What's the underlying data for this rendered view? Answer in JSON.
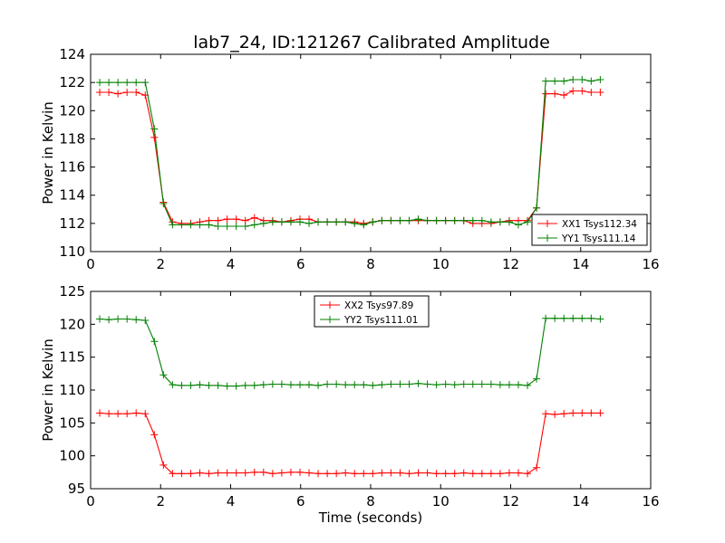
{
  "title": "lab7_24, ID:121267 Calibrated Amplitude",
  "chart_data": [
    {
      "type": "line",
      "ylabel": "Power in Kelvin",
      "xlabel": "",
      "xlim": [
        0,
        16
      ],
      "ylim": [
        110,
        124
      ],
      "xticks": [
        "0",
        "2",
        "4",
        "6",
        "8",
        "10",
        "12",
        "14",
        "16"
      ],
      "yticks": [
        "110",
        "112",
        "114",
        "116",
        "118",
        "120",
        "122",
        "124"
      ],
      "legend_position": "lower-right",
      "x": [
        0.26,
        0.52,
        0.78,
        1.04,
        1.3,
        1.56,
        1.82,
        2.08,
        2.34,
        2.6,
        2.86,
        3.12,
        3.38,
        3.64,
        3.9,
        4.16,
        4.42,
        4.68,
        4.94,
        5.2,
        5.46,
        5.72,
        5.98,
        6.24,
        6.5,
        6.76,
        7.02,
        7.28,
        7.54,
        7.8,
        8.06,
        8.32,
        8.58,
        8.84,
        9.1,
        9.36,
        9.62,
        9.88,
        10.14,
        10.4,
        10.66,
        10.92,
        11.18,
        11.44,
        11.7,
        11.96,
        12.22,
        12.48,
        12.74,
        13.0,
        13.26,
        13.52,
        13.78,
        14.04,
        14.3,
        14.56
      ],
      "series": [
        {
          "name": "XX1 Tsys112.34",
          "color": "#ff0000",
          "values": [
            121.3,
            121.3,
            121.2,
            121.3,
            121.3,
            121.1,
            118.1,
            113.5,
            112.1,
            112.0,
            112.0,
            112.1,
            112.2,
            112.2,
            112.3,
            112.3,
            112.2,
            112.4,
            112.2,
            112.2,
            112.1,
            112.2,
            112.3,
            112.3,
            112.1,
            112.1,
            112.1,
            112.1,
            112.1,
            112.0,
            112.1,
            112.2,
            112.2,
            112.2,
            112.2,
            112.2,
            112.2,
            112.2,
            112.2,
            112.2,
            112.2,
            112.0,
            112.0,
            112.0,
            112.1,
            112.2,
            112.2,
            112.2,
            113.1,
            121.2,
            121.2,
            121.1,
            121.4,
            121.4,
            121.3,
            121.3
          ]
        },
        {
          "name": "YY1 Tsys111.14",
          "color": "#008000",
          "values": [
            122.0,
            122.0,
            122.0,
            122.0,
            122.0,
            122.0,
            118.7,
            113.4,
            111.9,
            111.9,
            111.9,
            111.9,
            111.9,
            111.8,
            111.8,
            111.8,
            111.8,
            111.9,
            112.0,
            112.1,
            112.1,
            112.1,
            112.1,
            112.0,
            112.1,
            112.1,
            112.1,
            112.1,
            112.0,
            111.9,
            112.1,
            112.2,
            112.2,
            112.2,
            112.2,
            112.3,
            112.2,
            112.2,
            112.2,
            112.2,
            112.2,
            112.2,
            112.2,
            112.1,
            112.1,
            112.1,
            111.9,
            112.1,
            113.1,
            122.1,
            122.1,
            122.1,
            122.2,
            122.2,
            122.1,
            122.2
          ]
        }
      ]
    },
    {
      "type": "line",
      "ylabel": "Power in Kelvin",
      "xlabel": "Time (seconds)",
      "xlim": [
        0,
        16
      ],
      "ylim": [
        95,
        125
      ],
      "xticks": [
        "0",
        "2",
        "4",
        "6",
        "8",
        "10",
        "12",
        "14",
        "16"
      ],
      "yticks": [
        "95",
        "100",
        "105",
        "110",
        "115",
        "120",
        "125"
      ],
      "legend_position": "upper-center",
      "x": [
        0.26,
        0.52,
        0.78,
        1.04,
        1.3,
        1.56,
        1.82,
        2.08,
        2.34,
        2.6,
        2.86,
        3.12,
        3.38,
        3.64,
        3.9,
        4.16,
        4.42,
        4.68,
        4.94,
        5.2,
        5.46,
        5.72,
        5.98,
        6.24,
        6.5,
        6.76,
        7.02,
        7.28,
        7.54,
        7.8,
        8.06,
        8.32,
        8.58,
        8.84,
        9.1,
        9.36,
        9.62,
        9.88,
        10.14,
        10.4,
        10.66,
        10.92,
        11.18,
        11.44,
        11.7,
        11.96,
        12.22,
        12.48,
        12.74,
        13.0,
        13.26,
        13.52,
        13.78,
        14.04,
        14.3,
        14.56
      ],
      "series": [
        {
          "name": "XX2 Tsys97.89",
          "color": "#ff0000",
          "values": [
            106.5,
            106.4,
            106.4,
            106.4,
            106.5,
            106.4,
            103.2,
            98.6,
            97.3,
            97.3,
            97.3,
            97.4,
            97.3,
            97.4,
            97.4,
            97.4,
            97.4,
            97.5,
            97.5,
            97.3,
            97.4,
            97.5,
            97.5,
            97.4,
            97.3,
            97.3,
            97.3,
            97.4,
            97.3,
            97.3,
            97.3,
            97.4,
            97.4,
            97.4,
            97.3,
            97.4,
            97.4,
            97.3,
            97.3,
            97.3,
            97.4,
            97.3,
            97.3,
            97.3,
            97.3,
            97.4,
            97.4,
            97.3,
            98.2,
            106.4,
            106.3,
            106.4,
            106.5,
            106.5,
            106.5,
            106.5
          ]
        },
        {
          "name": "YY2 Tsys111.01",
          "color": "#008000",
          "values": [
            120.8,
            120.7,
            120.8,
            120.8,
            120.7,
            120.6,
            117.4,
            112.3,
            110.8,
            110.7,
            110.7,
            110.8,
            110.7,
            110.7,
            110.6,
            110.6,
            110.7,
            110.7,
            110.8,
            110.9,
            110.9,
            110.8,
            110.8,
            110.8,
            110.7,
            110.9,
            110.9,
            110.8,
            110.8,
            110.8,
            110.7,
            110.8,
            110.9,
            110.9,
            110.9,
            111.0,
            110.9,
            110.8,
            110.9,
            110.8,
            110.9,
            110.9,
            110.9,
            110.9,
            110.8,
            110.8,
            110.8,
            110.7,
            111.7,
            120.9,
            120.9,
            120.9,
            120.9,
            120.9,
            120.9,
            120.8
          ]
        }
      ]
    }
  ]
}
